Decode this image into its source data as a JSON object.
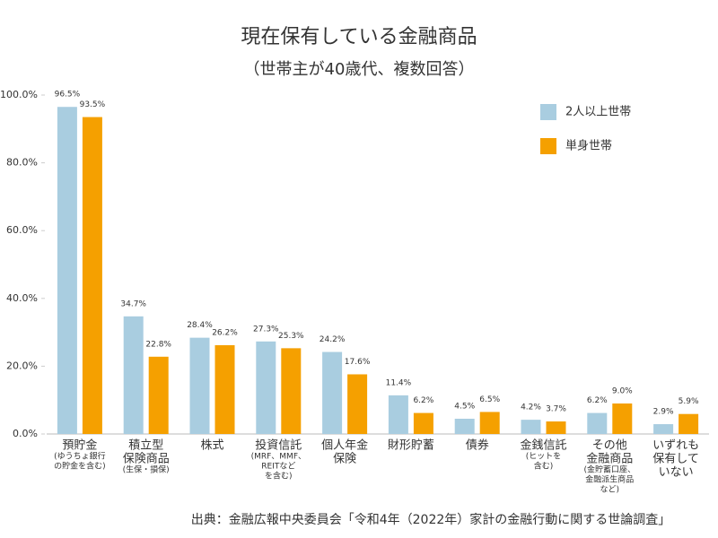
{
  "chart_data": {
    "type": "bar",
    "title": "現在保有している金融商品",
    "subtitle": "（世帯主が40歳代、複数回答）",
    "source": "出典：金融広報中央委員会「令和4年（2022年）家計の金融行動に関する世論調査」",
    "categories": [
      [
        "預貯金"
      ],
      [
        "積立型",
        "保険商品"
      ],
      [
        "株式"
      ],
      [
        "投資信託"
      ],
      [
        "個人年金",
        "保険"
      ],
      [
        "財形貯蓄"
      ],
      [
        "債券"
      ],
      [
        "金銭信託"
      ],
      [
        "その他",
        "金融商品"
      ],
      [
        "いずれも",
        "保有して",
        "いない"
      ]
    ],
    "category_notes": [
      [
        "(ゆうちょ銀行",
        "の貯金を含む)"
      ],
      [
        "(生保・損保)"
      ],
      [],
      [
        "(MRF、MMF、",
        "REITなど",
        "を含む)"
      ],
      [],
      [],
      [],
      [
        "(ヒットを",
        "含む)"
      ],
      [
        "(金貯蓄口座、",
        "金融派生商品",
        "など)"
      ],
      []
    ],
    "series": [
      {
        "name": "2人以上世帯",
        "color": "#a9cde0",
        "values": [
          96.5,
          34.7,
          28.4,
          27.3,
          24.2,
          11.4,
          4.5,
          4.2,
          6.2,
          2.9
        ],
        "value_labels": [
          "96.5%",
          "34.7%",
          "28.4%",
          "27.3%",
          "24.2%",
          "11.4%",
          "4.5%",
          "4.2%",
          "6.2%",
          "2.9%"
        ]
      },
      {
        "name": "単身世帯",
        "color": "#f5a000",
        "values": [
          93.5,
          22.8,
          26.2,
          25.3,
          17.6,
          6.2,
          6.5,
          3.7,
          9.0,
          5.9
        ],
        "value_labels": [
          "93.5%",
          "22.8%",
          "26.2%",
          "25.3%",
          "17.6%",
          "6.2%",
          "6.5%",
          "3.7%",
          "9.0%",
          "5.9%"
        ]
      }
    ],
    "ylim": [
      0,
      100
    ],
    "yticks": [
      {
        "value": 0,
        "label": "0.0%"
      },
      {
        "value": 20,
        "label": "20.0%"
      },
      {
        "value": 40,
        "label": "40.0%"
      },
      {
        "value": 60,
        "label": "60.0%"
      },
      {
        "value": 80,
        "label": "80.0%"
      },
      {
        "value": 100,
        "label": "100.0%"
      }
    ],
    "legend": "top-right"
  }
}
